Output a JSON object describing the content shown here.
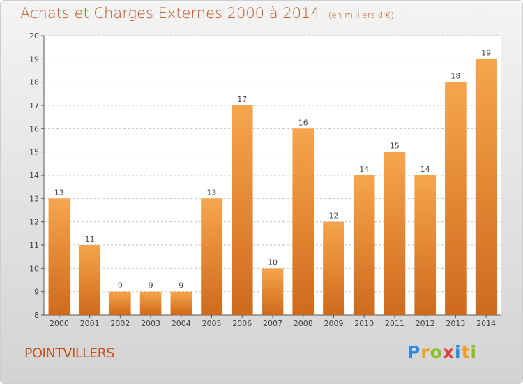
{
  "title": "Achats et Charges Externes 2000 à 2014",
  "unit_label": "(en milliers d'€)",
  "place_name": "POINTVILLERS",
  "logo": {
    "text": "Proxiti",
    "letters": [
      {
        "char": "P",
        "color": "#2f8bd6"
      },
      {
        "char": "r",
        "color": "#f0a020"
      },
      {
        "char": "o",
        "color": "#8cbf26"
      },
      {
        "char": "x",
        "color": "#e23a3a"
      },
      {
        "char": "i",
        "color": "#2f8bd6"
      },
      {
        "char": "t",
        "color": "#f0a020"
      },
      {
        "char": "i",
        "color": "#8cbf26"
      }
    ]
  },
  "colors": {
    "bar_top": "#f6a54e",
    "bar_bottom": "#cf6a1c",
    "title": "#c0561d",
    "grid": "#c4c4c4"
  },
  "chart_data": {
    "type": "bar",
    "title": "Achats et Charges Externes 2000 à 2014",
    "xlabel": "",
    "ylabel": "",
    "categories": [
      "2000",
      "2001",
      "2002",
      "2003",
      "2004",
      "2005",
      "2006",
      "2007",
      "2008",
      "2009",
      "2010",
      "2011",
      "2012",
      "2013",
      "2014"
    ],
    "values": [
      13,
      11,
      9,
      9,
      9,
      13,
      17,
      10,
      16,
      12,
      14,
      15,
      14,
      18,
      19
    ],
    "ylim": [
      8,
      20
    ],
    "yticks": [
      8,
      9,
      10,
      11,
      12,
      13,
      14,
      15,
      16,
      17,
      18,
      19,
      20
    ],
    "grid": true,
    "legend": "none"
  }
}
